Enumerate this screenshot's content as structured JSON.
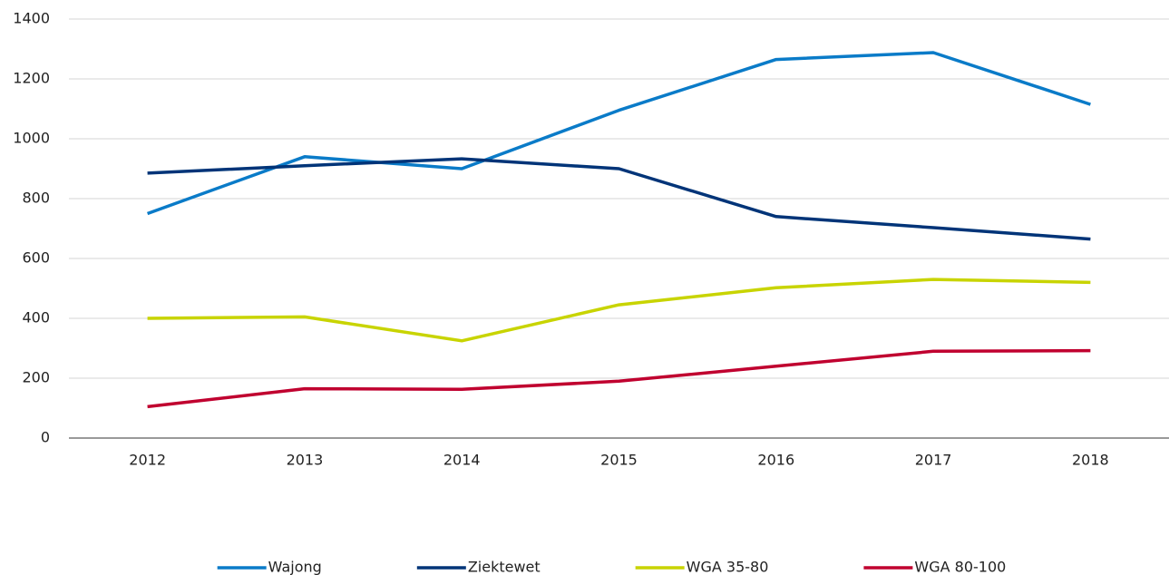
{
  "chart_data": {
    "type": "line",
    "categories": [
      "2012",
      "2013",
      "2014",
      "2015",
      "2016",
      "2017",
      "2018"
    ],
    "series": [
      {
        "name": "Wajong",
        "color": "#0a7bc8",
        "values": [
          750,
          940,
          900,
          1095,
          1265,
          1288,
          1115
        ]
      },
      {
        "name": "Ziektewet",
        "color": "#003478",
        "values": [
          885,
          910,
          933,
          900,
          740,
          703,
          665
        ]
      },
      {
        "name": "WGA 35-80",
        "color": "#c8d400",
        "values": [
          400,
          405,
          325,
          445,
          502,
          530,
          520
        ]
      },
      {
        "name": "WGA 80-100",
        "color": "#c0002f",
        "values": [
          105,
          165,
          163,
          190,
          240,
          290,
          292
        ]
      }
    ],
    "ylim": [
      0,
      1400
    ],
    "yticks": [
      0,
      200,
      400,
      600,
      800,
      1000,
      1200,
      1400
    ],
    "grid": true,
    "legend": "bottom"
  }
}
